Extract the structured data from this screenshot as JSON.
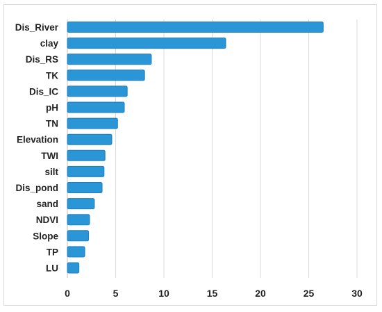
{
  "chart_data": {
    "type": "bar",
    "orientation": "horizontal",
    "categories": [
      "Dis_River",
      "clay",
      "Dis_RS",
      "TK",
      "Dis_IC",
      "pH",
      "TN",
      "Elevation",
      "TWI",
      "silt",
      "Dis_pond",
      "sand",
      "NDVI",
      "Slope",
      "TP",
      "LU"
    ],
    "values": [
      26.5,
      16.4,
      8.7,
      8.0,
      6.2,
      5.9,
      5.2,
      4.6,
      3.9,
      3.8,
      3.6,
      2.8,
      2.3,
      2.2,
      1.8,
      1.2
    ],
    "xlim": [
      0,
      30
    ],
    "xticks": [
      "0",
      "5",
      "10",
      "15",
      "20",
      "25",
      "30"
    ],
    "grid": true,
    "bar_color": "#2b96d6",
    "bar_edge_color": "#1f7fc0",
    "grid_color": "#d9d9d9",
    "title": "",
    "xlabel": "",
    "ylabel": ""
  }
}
